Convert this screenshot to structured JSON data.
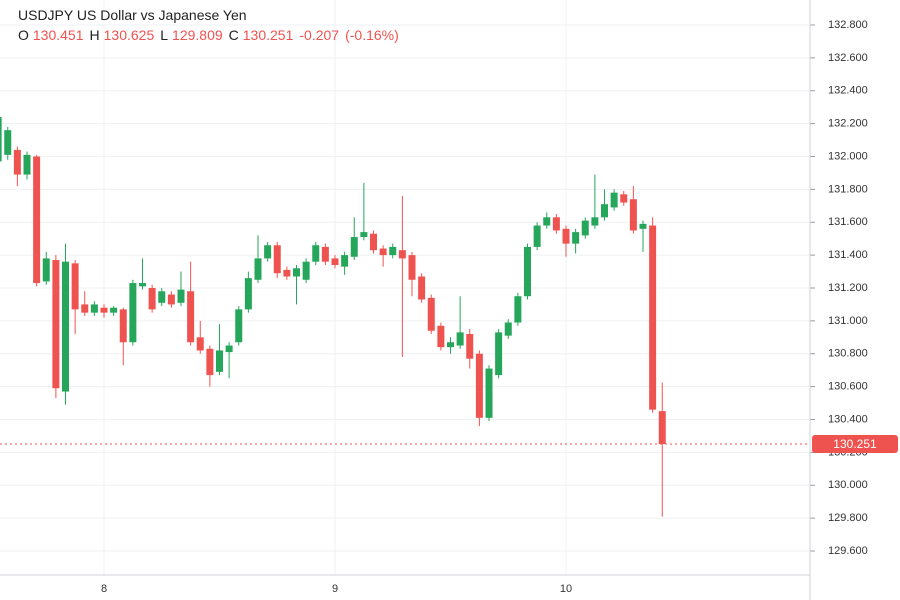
{
  "chart_data": {
    "type": "candlestick",
    "title": "USDJPY US Dollar vs Japanese Yen",
    "fields": [
      "O",
      "H",
      "L",
      "C"
    ],
    "change": -0.207,
    "change_pct": "(-0.16%)",
    "up_color": "#26a65b",
    "down_color": "#ef5350",
    "grid": true,
    "categories": [
      null,
      null,
      null,
      null,
      null,
      null,
      null,
      null,
      null,
      null,
      null,
      "8",
      null,
      null,
      null,
      null,
      null,
      null,
      null,
      null,
      null,
      null,
      null,
      null,
      null,
      null,
      null,
      null,
      null,
      null,
      null,
      null,
      null,
      null,
      null,
      "9",
      null,
      null,
      null,
      null,
      null,
      null,
      null,
      null,
      null,
      null,
      null,
      null,
      null,
      null,
      null,
      null,
      null,
      null,
      null,
      null,
      null,
      null,
      null,
      "10",
      null,
      null,
      null,
      null,
      null,
      null,
      null,
      null,
      null,
      null
    ],
    "open": [
      131.97,
      132.01,
      132.04,
      131.89,
      132.0,
      131.24,
      131.37,
      130.57,
      131.35,
      131.1,
      131.05,
      131.08,
      131.05,
      131.07,
      130.87,
      131.21,
      131.2,
      131.11,
      131.16,
      131.11,
      131.18,
      130.9,
      130.83,
      130.69,
      130.81,
      130.87,
      131.07,
      131.25,
      131.38,
      131.46,
      131.31,
      131.27,
      131.25,
      131.36,
      131.45,
      131.38,
      131.33,
      131.39,
      131.51,
      131.53,
      131.44,
      131.4,
      131.43,
      131.4,
      131.27,
      131.14,
      130.97,
      130.84,
      130.85,
      130.92,
      130.8,
      130.41,
      130.67,
      130.91,
      130.99,
      131.15,
      131.45,
      131.58,
      131.63,
      131.56,
      131.47,
      131.52,
      131.58,
      131.63,
      131.69,
      131.77,
      131.74,
      131.56,
      131.58,
      130.451
    ],
    "high": [
      132.28,
      132.18,
      132.06,
      132.03,
      132.01,
      131.42,
      131.4,
      131.47,
      131.37,
      131.18,
      131.12,
      131.1,
      131.09,
      131.08,
      131.25,
      131.38,
      131.22,
      131.2,
      131.18,
      131.3,
      131.36,
      131.0,
      130.85,
      130.98,
      130.87,
      131.09,
      131.3,
      131.52,
      131.48,
      131.48,
      131.33,
      131.34,
      131.38,
      131.48,
      131.47,
      131.4,
      131.42,
      131.63,
      131.84,
      131.55,
      131.46,
      131.47,
      131.76,
      131.42,
      131.29,
      131.16,
      130.99,
      130.9,
      131.15,
      130.95,
      130.82,
      130.73,
      130.95,
      131.01,
      131.17,
      131.47,
      131.6,
      131.66,
      131.65,
      131.58,
      131.56,
      131.63,
      131.89,
      131.8,
      131.8,
      131.79,
      131.82,
      131.61,
      131.63,
      130.625
    ],
    "low": [
      131.95,
      131.98,
      131.82,
      131.86,
      131.21,
      131.22,
      130.53,
      130.49,
      130.92,
      131.03,
      131.03,
      131.02,
      131.03,
      130.73,
      130.85,
      131.19,
      131.05,
      131.09,
      131.08,
      131.09,
      130.85,
      130.8,
      130.6,
      130.67,
      130.65,
      130.85,
      131.05,
      131.23,
      131.36,
      131.26,
      131.25,
      131.1,
      131.23,
      131.34,
      131.34,
      131.32,
      131.28,
      131.37,
      131.49,
      131.41,
      131.33,
      131.38,
      130.78,
      131.15,
      131.11,
      130.92,
      130.82,
      130.8,
      130.83,
      130.71,
      130.36,
      130.39,
      130.65,
      130.89,
      130.97,
      131.13,
      131.43,
      131.56,
      131.53,
      131.39,
      131.41,
      131.5,
      131.56,
      131.61,
      131.67,
      131.7,
      131.53,
      131.42,
      130.44,
      129.809
    ],
    "close": [
      132.24,
      132.16,
      131.89,
      132.01,
      131.23,
      131.38,
      130.59,
      131.36,
      131.07,
      131.05,
      131.1,
      131.05,
      131.08,
      130.87,
      131.23,
      131.23,
      131.07,
      131.18,
      131.1,
      131.19,
      130.87,
      130.82,
      130.67,
      130.82,
      130.85,
      131.07,
      131.26,
      131.38,
      131.46,
      131.29,
      131.27,
      131.32,
      131.36,
      131.46,
      131.36,
      131.34,
      131.4,
      131.51,
      131.54,
      131.43,
      131.4,
      131.45,
      131.38,
      131.25,
      131.13,
      130.94,
      130.84,
      130.87,
      130.93,
      130.77,
      130.41,
      130.71,
      130.93,
      130.99,
      131.15,
      131.45,
      131.58,
      131.63,
      131.55,
      131.47,
      131.54,
      131.61,
      131.63,
      131.71,
      131.78,
      131.72,
      131.55,
      131.59,
      130.46,
      130.251
    ],
    "ylim": [
      129.454,
      132.952
    ],
    "yticks": [
      {
        "value": 129.6,
        "label": "129.600"
      },
      {
        "value": 129.8,
        "label": "129.800"
      },
      {
        "value": 130.0,
        "label": "130.000"
      },
      {
        "value": 130.2,
        "label": "130.200"
      },
      {
        "value": 130.4,
        "label": "130.400"
      },
      {
        "value": 130.6,
        "label": "130.600"
      },
      {
        "value": 130.8,
        "label": "130.800"
      },
      {
        "value": 131.0,
        "label": "131.000"
      },
      {
        "value": 131.2,
        "label": "131.200"
      },
      {
        "value": 131.4,
        "label": "131.400"
      },
      {
        "value": 131.6,
        "label": "131.600"
      },
      {
        "value": 131.8,
        "label": "131.800"
      },
      {
        "value": 132.0,
        "label": "132.000"
      },
      {
        "value": 132.2,
        "label": "132.200"
      },
      {
        "value": 132.4,
        "label": "132.400"
      },
      {
        "value": 132.6,
        "label": "132.600"
      },
      {
        "value": 132.8,
        "label": "132.800"
      }
    ]
  }
}
